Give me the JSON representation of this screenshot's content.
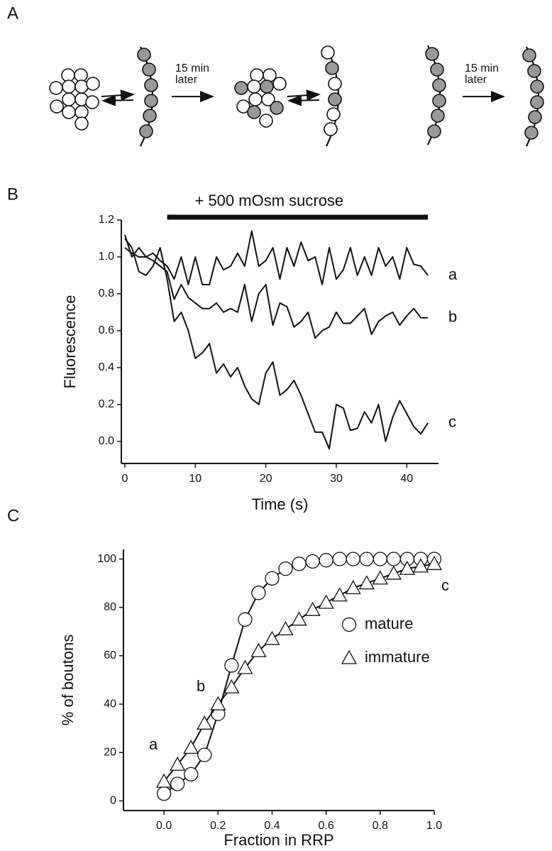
{
  "panel_labels": [
    "A",
    "B",
    "C"
  ],
  "diagram": {
    "arrows": [
      {
        "label_lines": [
          "15 min",
          "later"
        ]
      },
      {
        "label_lines": [
          "15 min",
          "later"
        ]
      }
    ]
  },
  "chart_data": [
    {
      "type": "line",
      "y_label": "Fluorescence",
      "x_label": "Time (s)",
      "annotation": {
        "text": "+ 500 mOsm sucrose",
        "x_range": [
          6,
          43
        ]
      },
      "x": [
        0,
        1,
        2,
        3,
        4,
        5,
        6,
        7,
        8,
        9,
        10,
        11,
        12,
        13,
        14,
        15,
        16,
        17,
        18,
        19,
        20,
        21,
        22,
        23,
        24,
        25,
        26,
        27,
        28,
        29,
        30,
        31,
        32,
        33,
        34,
        35,
        36,
        37,
        38,
        39,
        40,
        41,
        42,
        43
      ],
      "series": [
        {
          "name": "a",
          "color": "#111111",
          "values": [
            1.12,
            1.0,
            1.05,
            1.0,
            1.02,
            0.98,
            0.95,
            0.88,
            1.0,
            0.85,
            1.0,
            0.85,
            0.85,
            1.0,
            0.93,
            0.95,
            1.02,
            0.95,
            1.14,
            0.95,
            0.98,
            1.05,
            0.88,
            1.05,
            0.95,
            1.08,
            0.98,
            1.0,
            0.85,
            1.05,
            0.88,
            0.93,
            1.05,
            0.9,
            1.0,
            0.9,
            1.05,
            0.95,
            1.0,
            0.88,
            1.05,
            0.96,
            0.95,
            0.9
          ]
        },
        {
          "name": "b",
          "color": "#111111",
          "values": [
            1.05,
            1.02,
            1.0,
            1.0,
            0.98,
            0.95,
            0.92,
            0.77,
            0.85,
            0.78,
            0.75,
            0.72,
            0.72,
            0.75,
            0.7,
            0.72,
            0.7,
            0.85,
            0.65,
            0.8,
            0.85,
            0.63,
            0.75,
            0.73,
            0.62,
            0.65,
            0.7,
            0.56,
            0.6,
            0.62,
            0.7,
            0.64,
            0.64,
            0.68,
            0.72,
            0.58,
            0.65,
            0.68,
            0.7,
            0.63,
            0.68,
            0.72,
            0.67,
            0.67
          ]
        },
        {
          "name": "c",
          "color": "#111111",
          "values": [
            1.1,
            1.05,
            0.92,
            0.9,
            0.95,
            1.05,
            0.88,
            0.65,
            0.7,
            0.6,
            0.45,
            0.48,
            0.53,
            0.37,
            0.42,
            0.35,
            0.4,
            0.3,
            0.23,
            0.2,
            0.37,
            0.43,
            0.25,
            0.28,
            0.33,
            0.25,
            0.15,
            0.05,
            0.05,
            -0.04,
            0.2,
            0.18,
            0.06,
            0.07,
            0.16,
            0.1,
            0.2,
            0.0,
            0.13,
            0.22,
            0.15,
            0.08,
            0.04,
            0.1
          ]
        }
      ],
      "xlim": [
        -0.5,
        44.5
      ],
      "xticks": [
        0,
        10,
        20,
        30,
        40
      ],
      "ylim": [
        -0.12,
        1.2
      ],
      "yticks": [
        {
          "value": 0,
          "label": "0.0"
        },
        0.2,
        0.4,
        0.6,
        0.8,
        {
          "value": 1,
          "label": "1.0"
        },
        1.2
      ]
    },
    {
      "type": "scatter",
      "y_label": "% of boutons",
      "x_label": "Fraction in RRP",
      "annotations": [
        "a",
        "b",
        "c"
      ],
      "x": [
        0,
        0.05,
        0.1,
        0.15,
        0.2,
        0.25,
        0.3,
        0.35,
        0.4,
        0.45,
        0.5,
        0.55,
        0.6,
        0.65,
        0.7,
        0.75,
        0.8,
        0.85,
        0.9,
        0.95,
        1.0
      ],
      "series": [
        {
          "name": "mature",
          "marker": "circle",
          "color": "#111111",
          "values": [
            3,
            7,
            11,
            19,
            36,
            56,
            75,
            86,
            92,
            96,
            98,
            99,
            99.5,
            100,
            100,
            100,
            100,
            100,
            100,
            100,
            100
          ]
        },
        {
          "name": "immature",
          "marker": "triangle",
          "color": "#111111",
          "values": [
            8,
            15,
            22,
            32,
            40,
            47,
            55,
            62,
            67,
            71,
            75,
            79,
            82,
            85,
            88,
            90,
            92,
            94,
            96,
            97,
            98
          ]
        }
      ],
      "xlim": [
        -0.15,
        1.0
      ],
      "xticks": [
        {
          "value": 0,
          "label": "0.0"
        },
        0.2,
        0.4,
        0.6,
        0.8,
        {
          "value": 1,
          "label": "1.0"
        }
      ],
      "ylim": [
        -4,
        104
      ],
      "yticks": [
        0,
        20,
        40,
        60,
        80,
        100
      ],
      "legend": "right"
    }
  ]
}
